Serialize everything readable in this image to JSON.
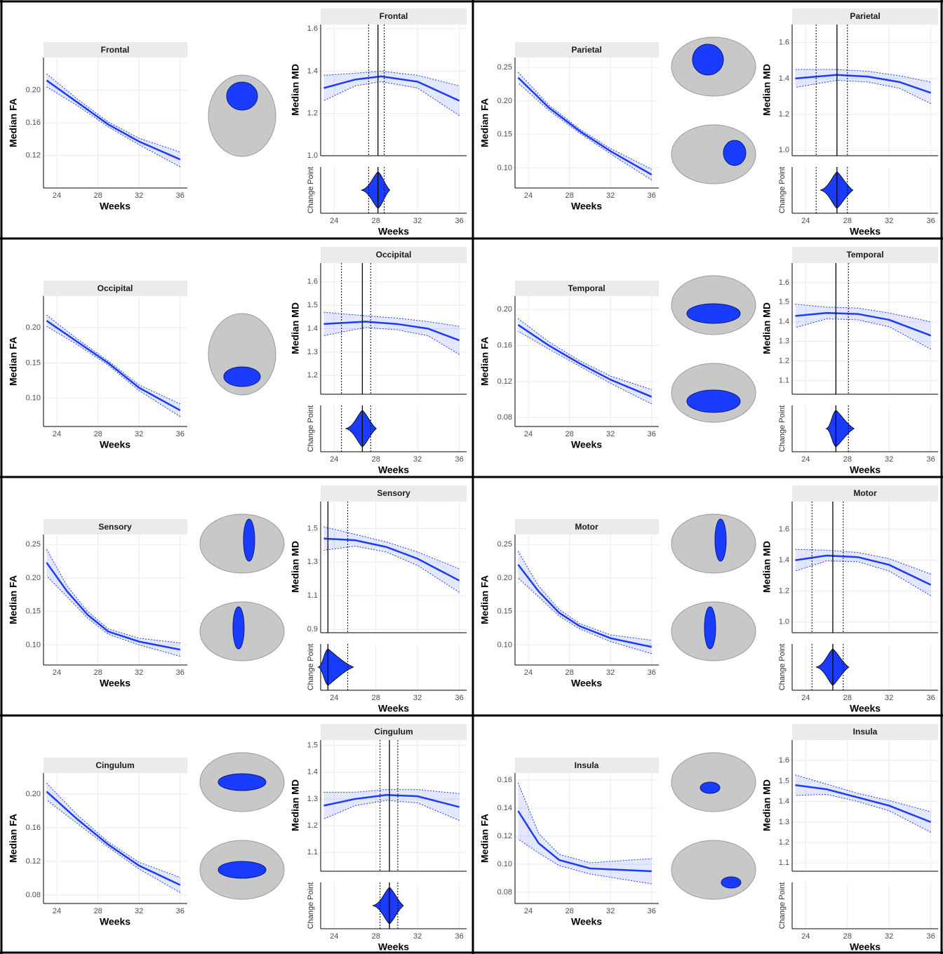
{
  "chart_data": [
    {
      "type": "line",
      "title": "Frontal",
      "x_label": "Weeks",
      "fa_label": "Median FA",
      "md_label": "Median MD",
      "cp_label": "Change Point",
      "xlim": [
        22.7,
        36.7
      ],
      "xticks": [
        24,
        28,
        32,
        36
      ],
      "color": "#1a3cff",
      "fa": {
        "x": [
          23,
          26,
          29,
          32,
          36
        ],
        "values": [
          0.212,
          0.185,
          0.158,
          0.137,
          0.115
        ],
        "ci": [
          0.008,
          0.004,
          0.003,
          0.004,
          0.009
        ],
        "ylim": [
          0.08,
          0.24
        ],
        "yticks": [
          0.12,
          0.16,
          {
            "value": 0.2,
            "label": "0.20"
          }
        ]
      },
      "md": {
        "x": [
          23,
          26,
          28.5,
          32,
          36
        ],
        "values": [
          1.32,
          1.36,
          1.375,
          1.35,
          1.26
        ],
        "ci": [
          0.06,
          0.03,
          0.025,
          0.03,
          0.07
        ],
        "ylim": [
          1.0,
          1.62
        ],
        "yticks": [
          {
            "value": 1.0,
            "label": "1.0"
          },
          1.2,
          1.4,
          1.6
        ]
      },
      "change_point": {
        "value": 28.2,
        "low": 27.3,
        "high": 28.8
      }
    },
    {
      "type": "line",
      "title": "Parietal",
      "x_label": "Weeks",
      "fa_label": "Median FA",
      "md_label": "Median MD",
      "cp_label": "Change Point",
      "xlim": [
        22.7,
        36.7
      ],
      "xticks": [
        24,
        28,
        32,
        36
      ],
      "color": "#1a3cff",
      "fa": {
        "x": [
          23,
          26,
          29,
          32,
          36
        ],
        "values": [
          0.235,
          0.19,
          0.155,
          0.125,
          0.09
        ],
        "ci": [
          0.008,
          0.004,
          0.003,
          0.004,
          0.008
        ],
        "ylim": [
          0.07,
          0.265
        ],
        "yticks": [
          {
            "value": 0.1,
            "label": "0.10"
          },
          0.15,
          {
            "value": 0.2,
            "label": "0.20"
          },
          0.25
        ]
      },
      "md": {
        "x": [
          23,
          27,
          30,
          33,
          36
        ],
        "values": [
          1.4,
          1.42,
          1.41,
          1.38,
          1.32
        ],
        "ci": [
          0.05,
          0.03,
          0.03,
          0.035,
          0.06
        ],
        "ylim": [
          0.97,
          1.7
        ],
        "yticks": [
          {
            "value": 1.0,
            "label": "1.0"
          },
          1.2,
          1.4,
          1.6
        ]
      },
      "change_point": {
        "value": 27,
        "low": 25,
        "high": 28
      }
    },
    {
      "type": "line",
      "title": "Occipital",
      "x_label": "Weeks",
      "fa_label": "Median FA",
      "md_label": "Median MD",
      "cp_label": "Change Point",
      "xlim": [
        22.7,
        36.7
      ],
      "xticks": [
        24,
        28,
        32,
        36
      ],
      "color": "#1a3cff",
      "fa": {
        "x": [
          23,
          26,
          29,
          32,
          36
        ],
        "values": [
          0.21,
          0.18,
          0.15,
          0.115,
          0.083
        ],
        "ci": [
          0.008,
          0.004,
          0.003,
          0.004,
          0.009
        ],
        "ylim": [
          0.06,
          0.245
        ],
        "yticks": [
          {
            "value": 0.1,
            "label": "0.10"
          },
          0.15,
          {
            "value": 0.2,
            "label": "0.20"
          }
        ]
      },
      "md": {
        "x": [
          23,
          27,
          30,
          33,
          36
        ],
        "values": [
          1.42,
          1.43,
          1.42,
          1.4,
          1.35
        ],
        "ci": [
          0.05,
          0.025,
          0.025,
          0.03,
          0.06
        ],
        "ylim": [
          1.12,
          1.68
        ],
        "yticks": [
          1.2,
          1.3,
          1.4,
          1.5,
          1.6
        ]
      },
      "change_point": {
        "value": 26.7,
        "low": 24.7,
        "high": 27.5
      }
    },
    {
      "type": "line",
      "title": "Temporal",
      "x_label": "Weeks",
      "fa_label": "Median FA",
      "md_label": "Median MD",
      "cp_label": "Change Point",
      "xlim": [
        22.7,
        36.7
      ],
      "xticks": [
        24,
        28,
        32,
        36
      ],
      "color": "#1a3cff",
      "fa": {
        "x": [
          23,
          26,
          29,
          32,
          36
        ],
        "values": [
          0.183,
          0.16,
          0.14,
          0.122,
          0.103
        ],
        "ci": [
          0.007,
          0.004,
          0.003,
          0.004,
          0.008
        ],
        "ylim": [
          0.07,
          0.215
        ],
        "yticks": [
          0.08,
          0.12,
          0.16,
          {
            "value": 0.2,
            "label": "0.20"
          }
        ]
      },
      "md": {
        "x": [
          23,
          26,
          29,
          32,
          36
        ],
        "values": [
          1.43,
          1.445,
          1.44,
          1.41,
          1.33
        ],
        "ci": [
          0.06,
          0.03,
          0.03,
          0.035,
          0.07
        ],
        "ylim": [
          1.03,
          1.7
        ],
        "yticks": [
          1.1,
          1.2,
          1.3,
          1.4,
          1.5,
          1.6
        ]
      },
      "change_point": {
        "value": 26.9,
        "low": 26.9,
        "high": 28.1
      }
    },
    {
      "type": "line",
      "title": "Sensory",
      "x_label": "Weeks",
      "fa_label": "Median FA",
      "md_label": "Median MD",
      "cp_label": "Change Point",
      "xlim": [
        22.7,
        36.7
      ],
      "xticks": [
        24,
        28,
        32,
        36
      ],
      "color": "#1a3cff",
      "fa": {
        "x": [
          23,
          25,
          27,
          29,
          32,
          36
        ],
        "values": [
          0.223,
          0.18,
          0.145,
          0.12,
          0.105,
          0.093
        ],
        "ci": [
          0.02,
          0.008,
          0.005,
          0.004,
          0.005,
          0.01
        ],
        "ylim": [
          0.07,
          0.265
        ],
        "yticks": [
          {
            "value": 0.1,
            "label": "0.10"
          },
          0.15,
          {
            "value": 0.2,
            "label": "0.20"
          },
          0.25
        ]
      },
      "md": {
        "x": [
          23,
          26,
          29,
          32,
          36
        ],
        "values": [
          1.44,
          1.43,
          1.39,
          1.32,
          1.19
        ],
        "ci": [
          0.07,
          0.035,
          0.03,
          0.04,
          0.07
        ],
        "ylim": [
          0.88,
          1.66
        ],
        "yticks": [
          0.9,
          1.1,
          1.3,
          1.5
        ]
      },
      "change_point": {
        "value": 23.4,
        "low": 23.4,
        "high": 25.3
      }
    },
    {
      "type": "line",
      "title": "Motor",
      "x_label": "Weeks",
      "fa_label": "Median FA",
      "md_label": "Median MD",
      "cp_label": "Change Point",
      "xlim": [
        22.7,
        36.7
      ],
      "xticks": [
        24,
        28,
        32,
        36
      ],
      "color": "#1a3cff",
      "fa": {
        "x": [
          23,
          25,
          27,
          29,
          32,
          36
        ],
        "values": [
          0.22,
          0.18,
          0.148,
          0.128,
          0.11,
          0.097
        ],
        "ci": [
          0.02,
          0.008,
          0.005,
          0.004,
          0.005,
          0.01
        ],
        "ylim": [
          0.07,
          0.265
        ],
        "yticks": [
          {
            "value": 0.1,
            "label": "0.10"
          },
          0.15,
          {
            "value": 0.2,
            "label": "0.20"
          },
          0.25
        ]
      },
      "md": {
        "x": [
          23,
          26,
          29,
          32,
          36
        ],
        "values": [
          1.4,
          1.43,
          1.42,
          1.37,
          1.24
        ],
        "ci": [
          0.07,
          0.035,
          0.03,
          0.04,
          0.07
        ],
        "ylim": [
          0.93,
          1.78
        ],
        "yticks": [
          {
            "value": 1.0,
            "label": "1.0"
          },
          1.2,
          1.4,
          1.6
        ]
      },
      "change_point": {
        "value": 26.6,
        "low": 24.6,
        "high": 27.6
      }
    },
    {
      "type": "line",
      "title": "Cingulum",
      "x_label": "Weeks",
      "fa_label": "Median FA",
      "md_label": "Median MD",
      "cp_label": "Change Point",
      "xlim": [
        22.7,
        36.7
      ],
      "xticks": [
        24,
        28,
        32,
        36
      ],
      "color": "#1a3cff",
      "fa": {
        "x": [
          23,
          26,
          29,
          32,
          36
        ],
        "values": [
          0.203,
          0.17,
          0.14,
          0.115,
          0.092
        ],
        "ci": [
          0.01,
          0.005,
          0.003,
          0.004,
          0.009
        ],
        "ylim": [
          0.07,
          0.225
        ],
        "yticks": [
          0.08,
          0.12,
          0.16,
          {
            "value": 0.2,
            "label": "0.20"
          }
        ]
      },
      "md": {
        "x": [
          23,
          26,
          29,
          32,
          36
        ],
        "values": [
          1.275,
          1.3,
          1.315,
          1.31,
          1.27
        ],
        "ci": [
          0.05,
          0.025,
          0.02,
          0.025,
          0.05
        ],
        "ylim": [
          1.03,
          1.52
        ],
        "yticks": [
          1.1,
          1.2,
          1.3,
          1.4,
          1.5
        ]
      },
      "change_point": {
        "value": 29.3,
        "low": 28.4,
        "high": 30.1
      }
    },
    {
      "type": "line",
      "title": "Insula",
      "x_label": "Weeks",
      "fa_label": "Median FA",
      "md_label": "Median MD",
      "cp_label": "Change Point",
      "xlim": [
        22.7,
        36.7
      ],
      "xticks": [
        24,
        28,
        32,
        36
      ],
      "color": "#1a3cff",
      "fa": {
        "x": [
          23,
          25,
          27,
          30,
          36
        ],
        "values": [
          0.138,
          0.115,
          0.103,
          0.097,
          0.095
        ],
        "ci": [
          0.02,
          0.007,
          0.004,
          0.004,
          0.009
        ],
        "ylim": [
          0.072,
          0.165
        ],
        "yticks": [
          0.08,
          {
            "value": 0.1,
            "label": "0.10"
          },
          0.12,
          0.14,
          0.16
        ]
      },
      "md": {
        "x": [
          23,
          26,
          29,
          32,
          36
        ],
        "values": [
          1.48,
          1.46,
          1.42,
          1.38,
          1.3
        ],
        "ci": [
          0.05,
          0.025,
          0.02,
          0.025,
          0.05
        ],
        "ylim": [
          1.06,
          1.7
        ],
        "yticks": [
          1.1,
          1.2,
          1.3,
          1.4,
          1.5,
          1.6
        ]
      }
    }
  ]
}
